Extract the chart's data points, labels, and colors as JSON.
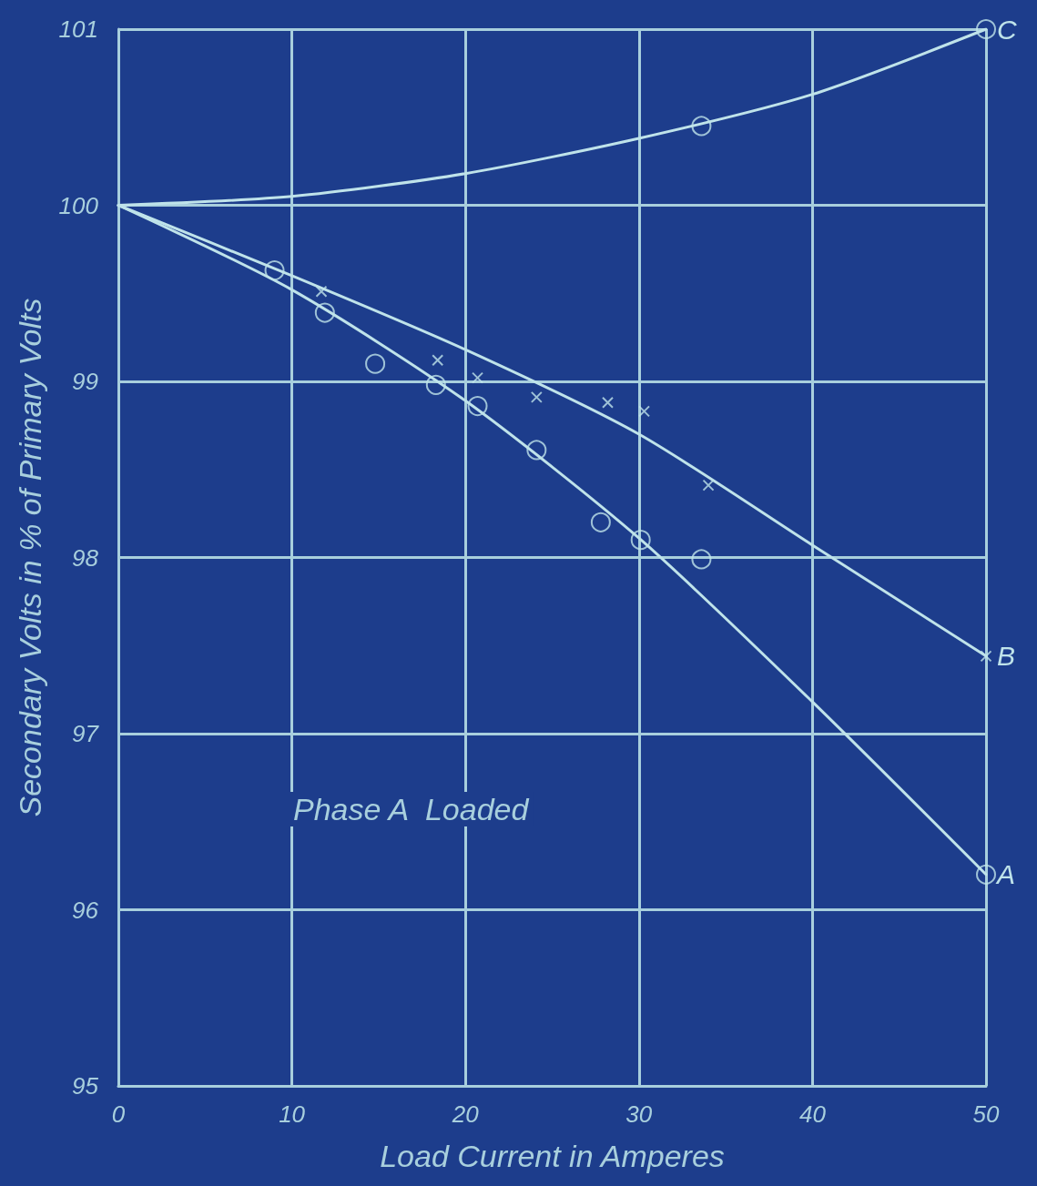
{
  "chart_data": {
    "type": "line",
    "xlabel": "Load Current in Amperes",
    "ylabel": "Secondary Volts in % of Primary Volts",
    "xlim": [
      0,
      50
    ],
    "xticks": [
      0,
      10,
      20,
      30,
      40,
      50
    ],
    "ylim": [
      95,
      101
    ],
    "yticks": [
      95,
      96,
      97,
      98,
      99,
      100,
      101
    ],
    "grid": true,
    "legend": false,
    "annotations": [
      "Phase A  Loaded"
    ],
    "series": [
      {
        "name": "C",
        "color": "#bfe3ea",
        "marker": "none",
        "x": [
          0,
          10,
          20,
          30,
          40,
          50
        ],
        "values": [
          100,
          100.05,
          100.18,
          100.38,
          100.63,
          101
        ]
      },
      {
        "name": "B",
        "color": "#bfe3ea",
        "marker": "none",
        "x": [
          0,
          10,
          20,
          30,
          40,
          50
        ],
        "values": [
          100,
          99.6,
          99.18,
          98.7,
          98.07,
          97.44
        ]
      },
      {
        "name": "A",
        "color": "#bfe3ea",
        "marker": "none",
        "x": [
          0,
          10,
          20,
          30,
          40,
          50
        ],
        "values": [
          100,
          99.52,
          98.89,
          98.11,
          97.18,
          96.2
        ]
      },
      {
        "type": "scatter",
        "color": "#bfe3ea",
        "marker": "circle",
        "x": [
          33.6,
          50
        ],
        "values": [
          100.45,
          101
        ]
      },
      {
        "type": "scatter",
        "color": "#bfe3ea",
        "marker": "cross",
        "x": [
          11.7,
          18.4,
          20.7,
          24.1,
          28.2,
          30.3,
          34,
          50
        ],
        "values": [
          99.51,
          99.12,
          99.02,
          98.91,
          98.88,
          98.83,
          98.41,
          97.44
        ]
      },
      {
        "type": "scatter",
        "color": "#bfe3ea",
        "marker": "circle",
        "x": [
          9,
          11.9,
          14.8,
          18.3,
          20.7,
          24.1,
          27.8,
          30.1,
          33.6,
          50
        ],
        "values": [
          99.63,
          99.39,
          99.1,
          98.98,
          98.86,
          98.61,
          98.2,
          98.1,
          97.99,
          96.2
        ]
      }
    ]
  }
}
